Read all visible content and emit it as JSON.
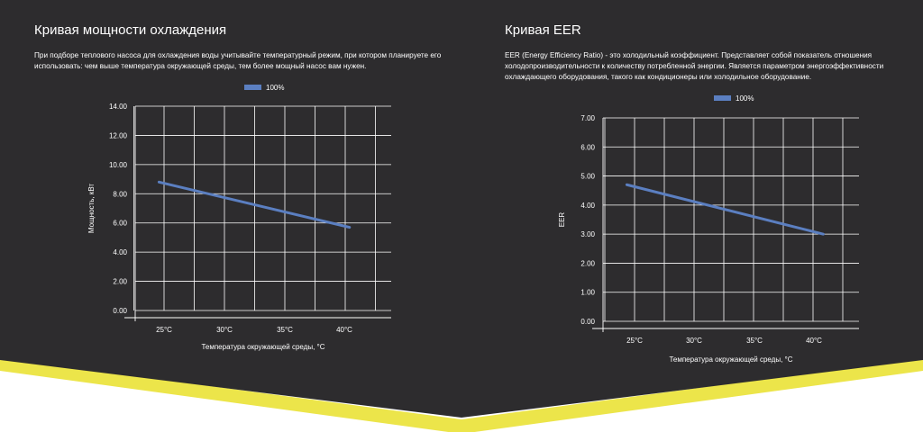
{
  "colors": {
    "background": "#2d2c2e",
    "accent": "#ece54a",
    "page": "#ffffff",
    "grid": "#ffffff",
    "line": "#5b7fc1"
  },
  "left_panel": {
    "title": "Кривая мощности охлаждения",
    "description": "При подборе теплового насоса для охлаждения воды учитывайте температурный режим, при котором планируете его использовать: чем выше температура окружающей среды, тем более мощный насос вам нужен."
  },
  "right_panel": {
    "title": "Кривая EER",
    "description": "EER (Energy Efficiency Ratio) - это холодильный коэффициент. Представляет собой показатель отношения холодопроизводительности к количеству потребленной энергии. Является параметром энергоэффективности охлаждающего оборудования, такого как кондиционеры или холодильное оборудование."
  },
  "chart_data": [
    {
      "type": "line",
      "xlabel": "Температура окружающей среды, °C",
      "ylabel": "Мощность, кВт",
      "categories": [
        "25°C",
        "30°C",
        "35°C",
        "40°C"
      ],
      "yticks": [
        "0.00",
        "2.00",
        "4.00",
        "6.00",
        "8.00",
        "10.00",
        "12.00",
        "14.00"
      ],
      "ylim": [
        0,
        14
      ],
      "grid": true,
      "legend_position": "top",
      "series": [
        {
          "name": "100%",
          "color": "#5b7fc1",
          "points": [
            [
              24.5,
              8.8
            ],
            [
              40.5,
              5.7
            ]
          ]
        }
      ]
    },
    {
      "type": "line",
      "xlabel": "Температура окружающей среды, °C",
      "ylabel": "EER",
      "categories": [
        "25°C",
        "30°C",
        "35°C",
        "40°C"
      ],
      "yticks": [
        "0.00",
        "1.00",
        "2.00",
        "3.00",
        "4.00",
        "5.00",
        "6.00",
        "7.00"
      ],
      "ylim": [
        0,
        7
      ],
      "grid": true,
      "legend_position": "top",
      "series": [
        {
          "name": "100%",
          "color": "#5b7fc1",
          "points": [
            [
              24.5,
              4.7
            ],
            [
              41,
              3.0
            ]
          ]
        }
      ]
    }
  ]
}
